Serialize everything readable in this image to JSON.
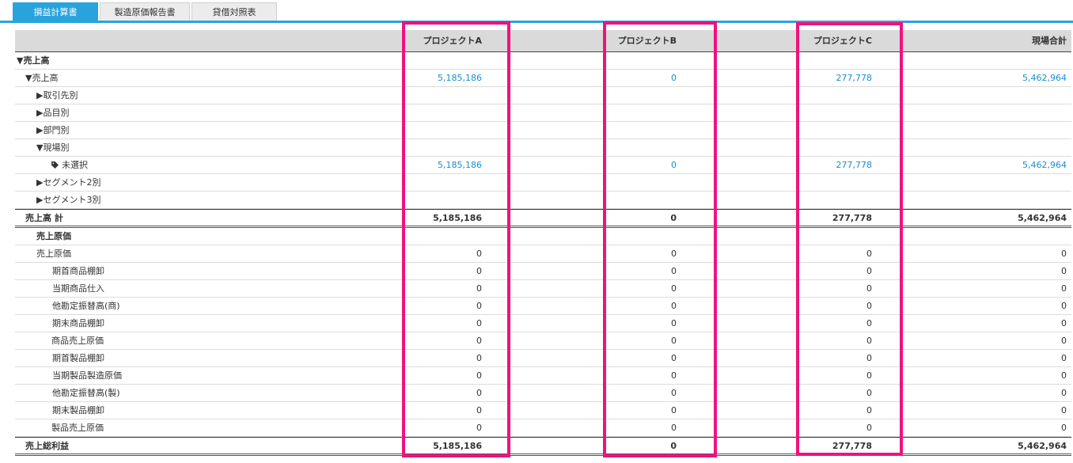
{
  "tabs": [
    {
      "label": "損益計算書",
      "active": true
    },
    {
      "label": "製造原価報告書",
      "active": false
    },
    {
      "label": "貸借対照表",
      "active": false
    }
  ],
  "header": {
    "columns": [
      "プロジェクトA",
      "プロジェクトB",
      "プロジェクトC",
      "現場合計"
    ]
  },
  "rows": [
    {
      "label": "▼売上高",
      "indent": 0,
      "style": "bold",
      "values": [
        "",
        "",
        "",
        ""
      ],
      "link": false
    },
    {
      "label": "▼売上高",
      "indent": 1,
      "style": "normal",
      "values": [
        "5,185,186",
        "0",
        "277,778",
        "5,462,964"
      ],
      "link": true
    },
    {
      "label": "▶取引先別",
      "indent": 2,
      "style": "normal",
      "values": [
        "",
        "",
        "",
        ""
      ],
      "link": false
    },
    {
      "label": "▶品目別",
      "indent": 2,
      "style": "normal",
      "values": [
        "",
        "",
        "",
        ""
      ],
      "link": false
    },
    {
      "label": "▶部門別",
      "indent": 2,
      "style": "normal",
      "values": [
        "",
        "",
        "",
        ""
      ],
      "link": false
    },
    {
      "label": "▼現場別",
      "indent": 2,
      "style": "normal",
      "values": [
        "",
        "",
        "",
        ""
      ],
      "link": false
    },
    {
      "label": "未選択",
      "indent": 3,
      "style": "normal",
      "icon": "tag-icon",
      "values": [
        "5,185,186",
        "0",
        "277,778",
        "5,462,964"
      ],
      "link": true
    },
    {
      "label": "▶セグメント2別",
      "indent": 2,
      "style": "normal",
      "values": [
        "",
        "",
        "",
        ""
      ],
      "link": false
    },
    {
      "label": "▶セグメント3別",
      "indent": 2,
      "style": "normal",
      "values": [
        "",
        "",
        "",
        ""
      ],
      "link": false
    },
    {
      "label": "売上高 計",
      "indent": 1,
      "style": "total",
      "values": [
        "5,185,186",
        "0",
        "277,778",
        "5,462,964"
      ],
      "link": false
    },
    {
      "label": "売上原価",
      "indent": 2,
      "style": "bold",
      "values": [
        "",
        "",
        "",
        ""
      ],
      "link": false
    },
    {
      "label": "売上原価",
      "indent": 2,
      "style": "normal",
      "values": [
        "0",
        "0",
        "0",
        "0"
      ],
      "link": false
    },
    {
      "label": "期首商品棚卸",
      "indent": 4,
      "style": "normal",
      "values": [
        "0",
        "0",
        "0",
        "0"
      ],
      "link": false
    },
    {
      "label": "当期商品仕入",
      "indent": 4,
      "style": "normal",
      "values": [
        "0",
        "0",
        "0",
        "0"
      ],
      "link": false
    },
    {
      "label": "他勘定振替高(商)",
      "indent": 4,
      "style": "normal",
      "values": [
        "0",
        "0",
        "0",
        "0"
      ],
      "link": false
    },
    {
      "label": "期末商品棚卸",
      "indent": 4,
      "style": "normal",
      "values": [
        "0",
        "0",
        "0",
        "0"
      ],
      "link": false
    },
    {
      "label": "商品売上原価",
      "indent": 3,
      "style": "normal",
      "values": [
        "0",
        "0",
        "0",
        "0"
      ],
      "link": false
    },
    {
      "label": "期首製品棚卸",
      "indent": 4,
      "style": "normal",
      "values": [
        "0",
        "0",
        "0",
        "0"
      ],
      "link": false
    },
    {
      "label": "当期製品製造原価",
      "indent": 4,
      "style": "normal",
      "values": [
        "0",
        "0",
        "0",
        "0"
      ],
      "link": false
    },
    {
      "label": "他勘定振替高(製)",
      "indent": 4,
      "style": "normal",
      "values": [
        "0",
        "0",
        "0",
        "0"
      ],
      "link": false
    },
    {
      "label": "期末製品棚卸",
      "indent": 4,
      "style": "normal",
      "values": [
        "0",
        "0",
        "0",
        "0"
      ],
      "link": false
    },
    {
      "label": "製品売上原価",
      "indent": 3,
      "style": "normal",
      "values": [
        "0",
        "0",
        "0",
        "0"
      ],
      "link": false
    },
    {
      "label": "売上総利益",
      "indent": 1,
      "style": "total",
      "values": [
        "5,185,186",
        "0",
        "277,778",
        "5,462,964"
      ],
      "link": false
    }
  ],
  "colors": {
    "accent": "#29a3dc",
    "link": "#1b8ecf",
    "highlight": "#f0127e"
  }
}
